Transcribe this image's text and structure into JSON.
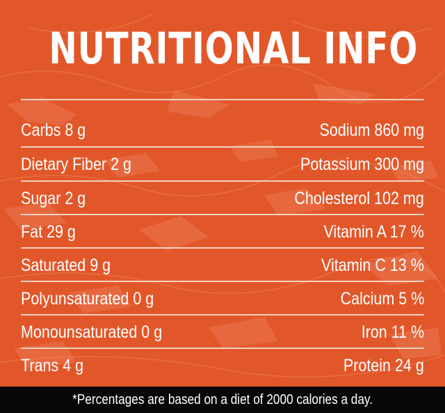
{
  "title": "NUTRITIONAL INFO",
  "rows": [
    {
      "left": "Carbs 8 g",
      "right": "Sodium 860 mg"
    },
    {
      "left": "Dietary Fiber 2 g",
      "right": "Potassium 300 mg"
    },
    {
      "left": "Sugar 2 g",
      "right": "Cholesterol 102 mg"
    },
    {
      "left": "Fat 29 g",
      "right": "Vitamin A 17 %"
    },
    {
      "left": "Saturated 9 g",
      "right": "Vitamin C 13 %"
    },
    {
      "left": "Polyunsaturated 0 g",
      "right": "Calcium 5 %"
    },
    {
      "left": "Monounsaturated 0 g",
      "right": "Iron 11 %"
    },
    {
      "left": "Trans 4 g",
      "right": "Protein 24 g"
    }
  ],
  "footnote": "*Percentages are based on a diet of 2000 calories a day.",
  "colors": {
    "background": "#e2572a",
    "text": "#ffffff",
    "footer": "#070707",
    "rule": "#f4d2c4"
  }
}
